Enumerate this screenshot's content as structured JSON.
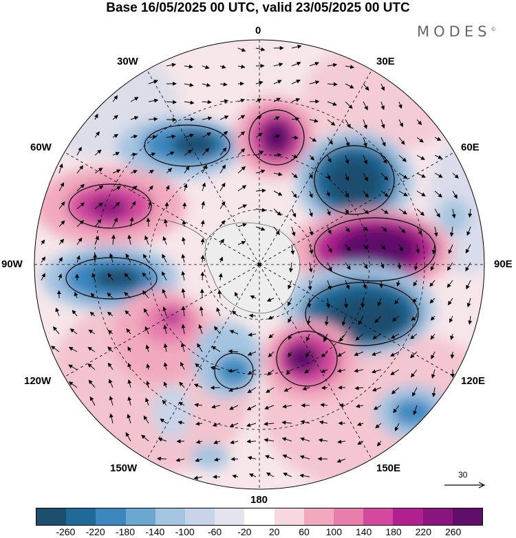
{
  "title": "Base 16/05/2025 00 UTC, valid 23/05/2025 00 UTC",
  "brand": "MODES",
  "brand_mark": "©",
  "longitude_labels": {
    "lon_0": "0",
    "lon_30e": "30E",
    "lon_60e": "60E",
    "lon_90e": "90E",
    "lon_120e": "120E",
    "lon_150e": "150E",
    "lon_180": "180",
    "lon_150w": "150W",
    "lon_120w": "120W",
    "lon_90w": "90W",
    "lon_60w": "60W",
    "lon_30w": "30W"
  },
  "vector_scale_label": "30",
  "colorbar": {
    "colors": [
      "#1c4e6e",
      "#1f6a99",
      "#3b88bf",
      "#6aa7d1",
      "#a4c4e0",
      "#c7d3e8",
      "#e4e4f0",
      "#ffffff",
      "#f8d8dc",
      "#f1aabd",
      "#e77fad",
      "#d2499d",
      "#b2208f",
      "#8a157f",
      "#5f0e6a"
    ],
    "tick_labels": [
      "-260",
      "-220",
      "-180",
      "-140",
      "-100",
      "-60",
      "-20",
      "20",
      "60",
      "100",
      "140",
      "180",
      "220",
      "260"
    ]
  },
  "anomaly_centers": [
    {
      "lon": "30W",
      "sign": "negative",
      "level": "-220"
    },
    {
      "lon": "0",
      "sign": "positive",
      "level": "260"
    },
    {
      "lon": "45E",
      "sign": "negative",
      "level": "-260"
    },
    {
      "lon": "75W",
      "sign": "positive",
      "level": "220"
    },
    {
      "lon": "85E",
      "sign": "positive",
      "level": "260"
    },
    {
      "lon": "95W",
      "sign": "negative",
      "level": "-260"
    },
    {
      "lon": "110E",
      "sign": "negative",
      "level": "-260"
    },
    {
      "lon": "125W",
      "sign": "positive",
      "level": "180"
    },
    {
      "lon": "155E",
      "sign": "positive",
      "level": "260"
    },
    {
      "lon": "165W",
      "sign": "negative",
      "level": "-180"
    },
    {
      "lon": "130E",
      "sign": "negative",
      "level": "-180"
    }
  ]
}
